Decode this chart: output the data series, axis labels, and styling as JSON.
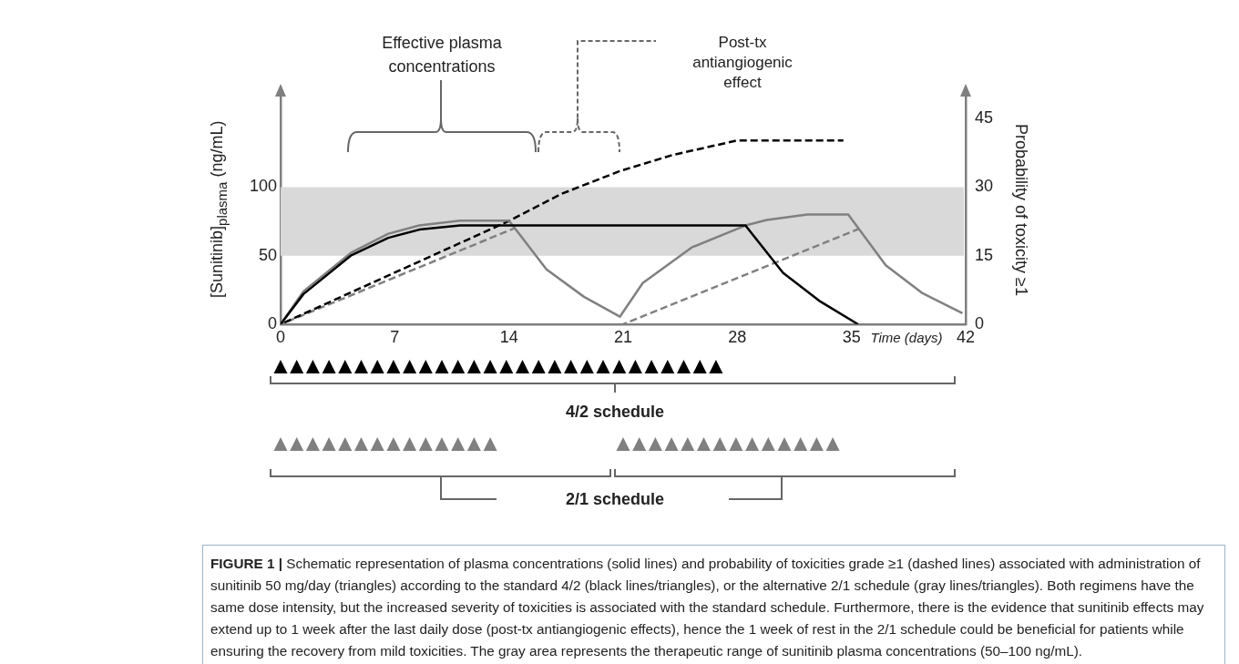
{
  "chart_data": {
    "type": "line",
    "ylabel": "[Sunitinib]$_{plasma}$ (ng/mL)",
    "y2label": "Probability of toxicity ≥1",
    "xlabel": "Time (days)",
    "xlim": [
      0,
      42
    ],
    "xticks": [
      0,
      7,
      14,
      21,
      28,
      35,
      42
    ],
    "ylim": [
      0,
      170
    ],
    "yticks": [
      0,
      50,
      100
    ],
    "y2lim": [
      0,
      51
    ],
    "y2ticks": [
      0,
      15,
      30,
      45
    ],
    "marker": "none",
    "series": [
      {
        "color": "#000000",
        "x": [
          0,
          1.4,
          4.3,
          6.6,
          8.5,
          11.0,
          28.5,
          30.8,
          33.1,
          35.4
        ],
        "values": [
          0,
          22,
          50,
          63,
          69,
          72,
          72,
          37.5,
          16.5,
          0
        ]
      },
      {
        "color": "#808080",
        "x": [
          0,
          1.4,
          4.3,
          6.6,
          8.5,
          11.0,
          14.0,
          16.3,
          18.6,
          20.8,
          22.2,
          25.2,
          28.5,
          29.8,
          32.3,
          34.8,
          37.1,
          39.3,
          41.8
        ],
        "values": [
          0,
          24,
          52,
          66,
          72,
          75.6,
          75.6,
          40,
          20,
          5.5,
          30,
          56,
          72,
          76,
          80,
          80,
          43,
          23,
          8
        ]
      },
      {
        "color": "#000000",
        "axis": "y2",
        "line_style": "dashed",
        "x": [
          0,
          14,
          17.2,
          20.8,
          24,
          28,
          34.5
        ],
        "values": [
          0,
          22.6,
          28.5,
          33.5,
          37,
          40.2,
          40.2
        ]
      },
      {
        "color": "#808080",
        "axis": "y2",
        "line_style": "dashed",
        "x": [
          0,
          14.4,
          17,
          21,
          35.4
        ],
        "values": [
          0,
          21.1,
          null,
          0,
          20.8
        ]
      }
    ],
    "bands": [
      {
        "axis": "y",
        "from": 50,
        "to": 100,
        "color": "#d9d9d9"
      }
    ],
    "annotations": [
      "Effective plasma concentrations",
      "Post-tx antiangiogenic effect",
      "4/2 schedule",
      "2/1 schedule",
      "FIGURE 1 |",
      "Schematic representation of plasma concentrations (solid lines) and probability of toxicities grade ≥1 (dashed lines) associated with administration of sunitinib 50 mg/day (triangles) according to the standard 4/2 (black lines/triangles), or the alternative 2/1 schedule (gray lines/triangles). Both regimens have the same dose intensity, but the increased severity of toxicities is associated with the standard schedule. Furthermore, there is the evidence that sunitinib effects may extend up to 1 week after the last daily dose (post-tx antiangiogenic effects), hence the 1 week of rest in the 2/1 schedule could be beneficial for patients while ensuring the recovery from mild toxicities. The gray area represents the therapeutic range of sunitinib plasma concentrations (50–100 ng/mL)."
    ]
  }
}
